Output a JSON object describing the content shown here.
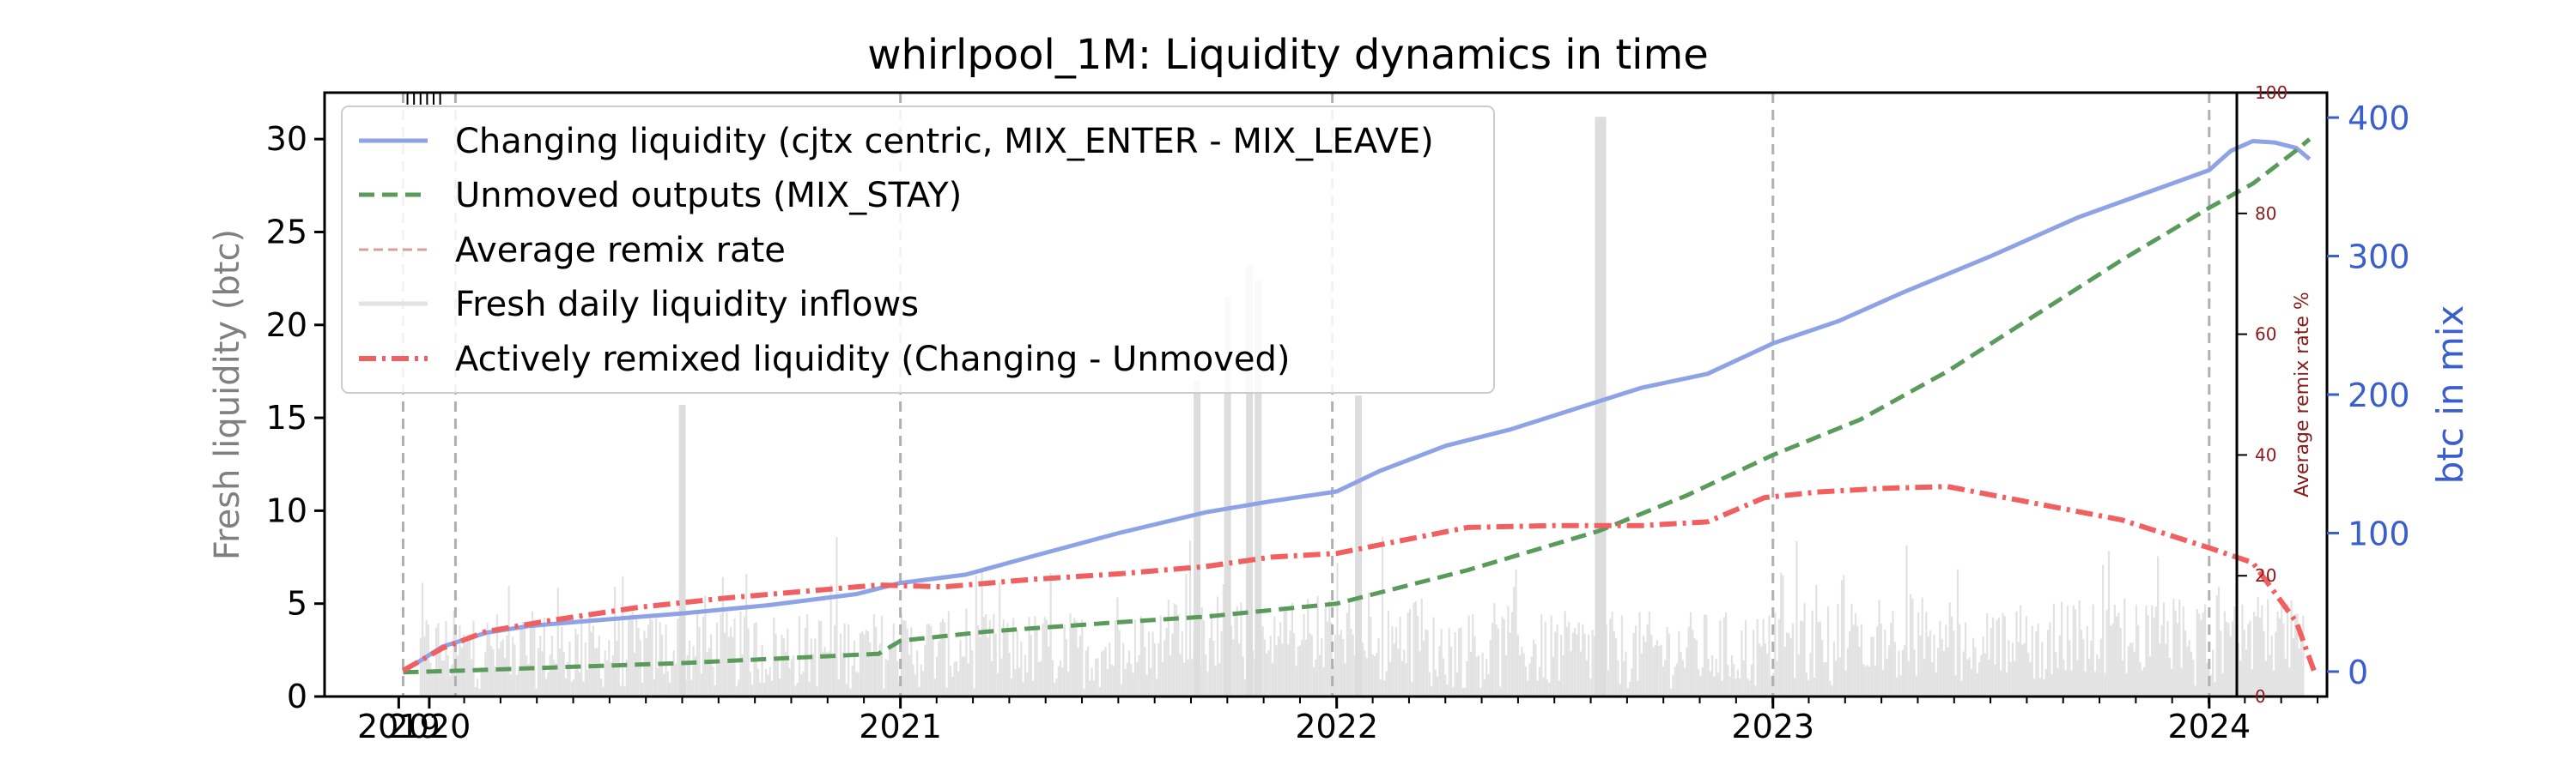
{
  "chart_data": {
    "type": "line",
    "title": "whirlpool_1M: Liquidity dynamics in time",
    "x_axis": {
      "range": [
        2019.68,
        2024.27
      ],
      "ticks": [
        {
          "value": 2019.85,
          "label": "2019"
        },
        {
          "value": 2019.92,
          "label": "2020"
        },
        {
          "value": 2021.0,
          "label": "2021"
        },
        {
          "value": 2022.0,
          "label": "2022"
        },
        {
          "value": 2023.0,
          "label": "2023"
        },
        {
          "value": 2024.0,
          "label": "2024"
        }
      ]
    },
    "left_axis": {
      "label": "Fresh liquidity (btc)",
      "range": [
        0,
        32.5
      ],
      "ticks": [
        0,
        5,
        10,
        15,
        20,
        25,
        30
      ]
    },
    "right_axis_btc": {
      "label": "btc in mix",
      "range": [
        -18,
        418
      ],
      "ticks": [
        0,
        100,
        200,
        300,
        400
      ]
    },
    "right_axis_remix": {
      "label": "Average remix rate %",
      "range": [
        0,
        100
      ],
      "ticks": [
        0,
        20,
        40,
        60,
        80,
        100
      ]
    },
    "event_lines_x": [
      2019.86,
      2019.98,
      2021.0,
      2021.99,
      2023.0,
      2024.0
    ],
    "legend": [
      {
        "label": "Changing liquidity (cjtx centric, MIX_ENTER - MIX_LEAVE)",
        "color": "#8ea2e6",
        "style": "solid"
      },
      {
        "label": "Unmoved outputs (MIX_STAY)",
        "color": "#5a9a5a",
        "style": "dashed"
      },
      {
        "label": "Average remix rate",
        "color": "#d9a09a",
        "style": "dashed"
      },
      {
        "label": "Fresh daily liquidity inflows",
        "color": "#e2e2e2",
        "style": "solid"
      },
      {
        "label": "Actively remixed liquidity (Changing - Unmoved)",
        "color": "#f06060",
        "style": "dashdot"
      }
    ],
    "series": [
      {
        "name": "Changing liquidity (cjtx centric, MIX_ENTER - MIX_LEAVE)",
        "axis": "right_btc",
        "x": [
          2019.86,
          2019.95,
          2020.05,
          2020.15,
          2020.3,
          2020.5,
          2020.7,
          2020.9,
          2021.0,
          2021.15,
          2021.3,
          2021.5,
          2021.7,
          2021.85,
          2022.0,
          2022.1,
          2022.25,
          2022.4,
          2022.55,
          2022.7,
          2022.85,
          2023.0,
          2023.15,
          2023.3,
          2023.5,
          2023.7,
          2023.85,
          2024.0,
          2024.05,
          2024.1,
          2024.15,
          2024.2,
          2024.23
        ],
        "values": [
          0,
          18,
          28,
          33,
          37,
          42,
          48,
          56,
          64,
          70,
          83,
          100,
          115,
          123,
          130,
          145,
          163,
          175,
          190,
          205,
          215,
          237,
          253,
          274,
          300,
          328,
          345,
          362,
          376,
          383,
          382,
          378,
          370
        ]
      },
      {
        "name": "Unmoved outputs (MIX_STAY)",
        "axis": "left",
        "x": [
          2019.86,
          2020.0,
          2020.5,
          2020.95,
          2021.0,
          2021.2,
          2021.5,
          2021.7,
          2022.0,
          2022.3,
          2022.6,
          2022.8,
          2023.0,
          2023.2,
          2023.4,
          2023.6,
          2023.8,
          2024.0,
          2024.1,
          2024.2,
          2024.23
        ],
        "values": [
          1.3,
          1.4,
          1.8,
          2.3,
          3.0,
          3.5,
          4.0,
          4.3,
          5.0,
          6.8,
          8.9,
          10.8,
          13.0,
          14.9,
          17.5,
          20.5,
          23.5,
          26.3,
          27.6,
          29.4,
          30.0
        ]
      },
      {
        "name": "Actively remixed liquidity (Changing - Unmoved)",
        "axis": "left",
        "x": [
          2019.86,
          2019.95,
          2020.05,
          2020.2,
          2020.4,
          2020.6,
          2020.8,
          2020.95,
          2021.1,
          2021.3,
          2021.5,
          2021.7,
          2021.85,
          2022.0,
          2022.15,
          2022.3,
          2022.5,
          2022.7,
          2022.85,
          2022.98,
          2023.1,
          2023.25,
          2023.4,
          2023.6,
          2023.8,
          2024.0,
          2024.1,
          2024.2,
          2024.24
        ],
        "values": [
          1.4,
          2.6,
          3.5,
          4.1,
          4.8,
          5.3,
          5.7,
          6.0,
          5.9,
          6.3,
          6.6,
          7.0,
          7.5,
          7.7,
          8.4,
          9.1,
          9.2,
          9.2,
          9.4,
          10.7,
          11.0,
          11.2,
          11.3,
          10.4,
          9.5,
          8.0,
          7.2,
          4.0,
          1.4
        ]
      }
    ],
    "fresh_daily_inflows_peaks": [
      {
        "x": 2020.5,
        "value": 15.7
      },
      {
        "x": 2021.68,
        "value": 17.0
      },
      {
        "x": 2021.75,
        "value": 21.5
      },
      {
        "x": 2021.8,
        "value": 23.2
      },
      {
        "x": 2021.82,
        "value": 22.4
      },
      {
        "x": 2022.05,
        "value": 16.2
      },
      {
        "x": 2022.6,
        "value": 31.2
      },
      {
        "x": 2022.61,
        "value": 31.2
      }
    ]
  }
}
